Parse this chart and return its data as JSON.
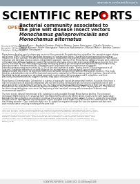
{
  "bg_color": "#ffffff",
  "header_bar_color": "#8a9baa",
  "header_url": "www.nature.com/scientificreports",
  "open_label": "OPEN",
  "open_color": "#e87722",
  "title_lines": [
    [
      "Bacterial community associated to",
      false
    ],
    [
      "the pine wilt disease insect vectors",
      false
    ],
    [
      "Monochamus galloprovincialis and",
      true
    ],
    [
      "Monochamus alternatus",
      true
    ]
  ],
  "received": "Received: 07 October 2013",
  "accepted": "Accepted: 18 March 2014",
  "published": "Published: 05 April 2014",
  "authors_lines": [
    "Marta Alves¹², Anabela Pereira¹, Patrícia Matos¹, Joana Henriques¹, Cláudia Vicente²³,",
    "Takuya Aikawa⁴, Koichi Hasegawa⁵, Francisco Nascimento¹, Manuel Mota²³, António Correia¹",
    "& Isabel Henriques¹²"
  ],
  "abstract_lines": [
    "Monochamus beetles are the dispersing vectors of the nematode Bursaphelenchus xylophilus, the causation agent of pine",
    "wilt disease (PWD). PWD inflicts significant damages in Eurasian pine forests. Symbiotic microorganisms have a large",
    "influence in insect survival. The aim of this study was to characterize the bacterial community associated to PWD vectors",
    "in Europe and East Asia using a culture-independent approach. Twenty-three Monochamus galloprovincialis were collected",
    "in Portugal (two different locations); twelve Monochamus alternatus were collected in Japan. DNA was extracted from the",
    "insects' tracheas for 16S rRNA analysis through denaturing gradient gel electrophoresis and barcoded pyrosequencing.",
    "Enterobacteriales, Pseudomonadales, Vibrionales and Oceanospirillales were present in all samples.",
    "Enterobacteriaceae was represented by 12.2% of the total number of reads. Twenty-three OTUs were present in all",
    "locations. Significant differences existed between the microbiomes of the two insect species while for M.",
    "galloprovincialis there were no significant differences between samples from different Portuguese locations. This study",
    "presents a detailed description of the bacterial community colonizing the Monochamus insects' tracheas. Several of the",
    "identified bacterial groups were described previously in association with pine trees and B. xylophilus, and their",
    "previously described functions suggest that they may play a relevant role in PWD."
  ],
  "intro1_lines": [
    "Monochamus (Cerambycidae: Coleoptera) is a genus of saproxylic (wood-decomposing) beetles. In nature, they have a",
    "role in the processes of wood decomposition and nutrient cycling. Serious beetles can cause a significant loss in pine",
    "value due to the tunnels their larvae bore. Yet, the major concern about Monochamus insects is their role as vectors of",
    "Bursaphelenchus xylophilus (Nematoda: Aphelenchoididae), the Pine Wilt Disease (PWD) causing agent¹². This disease",
    "has been devastating pine trees since the beginning of the twentieth century with tremendous economic and",
    "environmental impacts²³."
  ],
  "intro2_lines": [
    "The tree to tree natural transmission of B. xylophilus is only possible through Monochamus beetles. The pinewood",
    "nematode (PWN) enters in its dispersal form into Monochamus when the beetle larvae moults to the late pupal stage.",
    "Bursaphelenchus xylophilus accumulates mainly in the vectors' tracheal system, where it stays in a phoretic association",
    "through insects' development and emergence. When the adult insect feeds, the PWN enters in a new host tree through",
    "the feeding wounds⁴⁵. Once inside the host tree, B. xylophilus migrates through the vascular system and obstructs",
    "water conductance resulting in wilting of the pine host."
  ],
  "footnote_lines": [
    "¹Departamento de Biologia e Centro de Estudos do Ambiente e do Mar (CESAM), Universidade de Aveiro, Aveiro,",
    "3810-193, Portugal. ²Departamento de Biologia e Instituto de Biomedicina (iBiMED), Universidade de Aveiro, Aveiro,",
    "3810-193, Portugal. ³Melhoramento, Biotecnologia e Ecofisiologia de Investigação e Serviços de Sistemas Agrários e",
    "Florestais e Saúde Vegetal, Av. da República, Quinta do Marquês, Oeiras, 2780-157, Portugal. ⁴NemaLab-ICAAM,",
    "Universidade de Évora, Núcleo da Mitra, Ap. 94, Évora, 7002-554, Portugal. ⁵FFPRI - Forestry and Forest Products",
    "Research Institute, Tsukuba, Japan. ⁶Environmental Biology Department, Chubu University, Kasugai, Japan. ⁷Dep.",
    "Ciências da Vida, FCTC, Universidade Lusofona de Humanidades e Tecnologias (ULHT), Av. Campo Grande, 376,",
    "1749-024 Lisboa, Portugal. Correspondence and requests for materials should be addressed to A.P. (email: anabela.",
    "pereira@ua.pt)"
  ],
  "footer": "SCIENTIFIC REPORTS | 4:4188 | DOI: 10.1038/srep04188",
  "gear_color": "#cc0000",
  "title_color": "#1a1a1a",
  "body_text_color": "#333333",
  "small_text_color": "#666666",
  "journal_text_color": "#000000"
}
